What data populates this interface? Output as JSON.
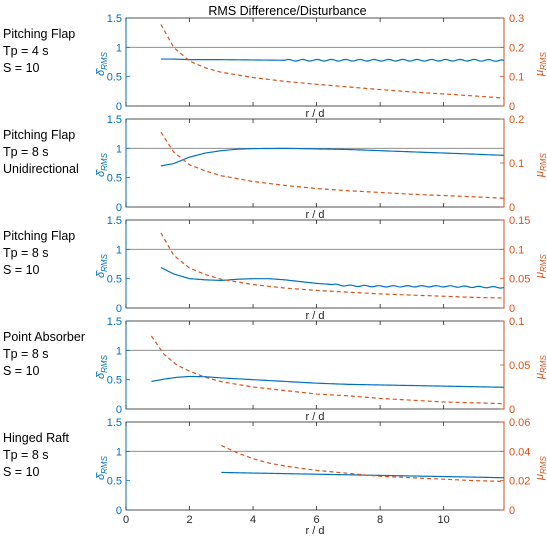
{
  "chart_data": {
    "type": "line",
    "title": "RMS Difference/Disturbance",
    "xlabel": "r / d",
    "x_ticks": [
      0,
      2,
      4,
      6,
      8,
      10
    ],
    "xlim": [
      0,
      11.9
    ],
    "colors": {
      "delta": "#0072BD",
      "mu": "#D95319",
      "refline": "#7f7f7f"
    },
    "left_ylabel": "δ̂_RMS",
    "right_ylabel": "μ_RMS",
    "panels": [
      {
        "label_lines": [
          "Pitching Flap",
          "Tp = 4 s",
          "S = 10"
        ],
        "ylim_left": [
          0,
          1.5
        ],
        "yticks_left": [
          "0",
          "0.5",
          "1",
          "1.5"
        ],
        "ylim_right": [
          0,
          0.3
        ],
        "yticks_right": [
          "0",
          "0.1",
          "0.2",
          "0.3"
        ],
        "series": [
          {
            "name": "δ̂_RMS",
            "axis": "left",
            "style": "solid",
            "x": [
              1.1,
              1.5,
              2,
              3,
              4,
              5,
              6,
              7,
              8,
              9,
              10,
              11,
              11.9
            ],
            "y": [
              0.8,
              0.8,
              0.79,
              0.79,
              0.785,
              0.78,
              0.78,
              0.78,
              0.78,
              0.78,
              0.78,
              0.78,
              0.775
            ],
            "wave_amp": 0.015,
            "wave_period": 0.45,
            "wave_start": 5
          },
          {
            "name": "μ_RMS",
            "axis": "right",
            "style": "dashed",
            "x": [
              1.1,
              1.5,
              2,
              2.5,
              3,
              4,
              5,
              6,
              7,
              8,
              9,
              10,
              11,
              11.9
            ],
            "y": [
              0.278,
              0.2,
              0.153,
              0.13,
              0.115,
              0.097,
              0.084,
              0.074,
              0.065,
              0.056,
              0.048,
              0.041,
              0.034,
              0.027
            ]
          }
        ]
      },
      {
        "label_lines": [
          "Pitching Flap",
          "Tp = 8 s",
          "Unidirectional"
        ],
        "ylim_left": [
          0,
          1.5
        ],
        "yticks_left": [
          "0",
          "0.5",
          "1",
          "1.5"
        ],
        "ylim_right": [
          0,
          0.2
        ],
        "yticks_right": [
          "0",
          "0.1",
          "0.2"
        ],
        "series": [
          {
            "name": "δ̂_RMS",
            "axis": "left",
            "style": "solid",
            "x": [
              1.1,
              1.5,
              2,
              2.5,
              3,
              3.5,
              4,
              5,
              6,
              7,
              8,
              9,
              10,
              11,
              11.9
            ],
            "y": [
              0.7,
              0.74,
              0.85,
              0.92,
              0.96,
              0.985,
              0.995,
              1.0,
              0.99,
              0.98,
              0.96,
              0.94,
              0.92,
              0.9,
              0.88
            ]
          },
          {
            "name": "μ_RMS",
            "axis": "right",
            "style": "dashed",
            "x": [
              1.1,
              1.5,
              2,
              2.5,
              3,
              4,
              5,
              6,
              7,
              8,
              9,
              10,
              11,
              11.9
            ],
            "y": [
              0.17,
              0.125,
              0.096,
              0.082,
              0.071,
              0.058,
              0.049,
              0.042,
              0.037,
              0.033,
              0.029,
              0.026,
              0.023,
              0.02
            ]
          }
        ]
      },
      {
        "label_lines": [
          "Pitching Flap",
          "Tp = 8 s",
          "S = 10"
        ],
        "ylim_left": [
          0,
          1.5
        ],
        "yticks_left": [
          "0",
          "0.5",
          "1",
          "1.5"
        ],
        "ylim_right": [
          0,
          0.15
        ],
        "yticks_right": [
          "0",
          "0.05",
          "0.1",
          "0.15"
        ],
        "series": [
          {
            "name": "δ̂_RMS",
            "axis": "left",
            "style": "solid",
            "x": [
              1.1,
              1.5,
              2,
              2.5,
              3,
              3.5,
              4,
              4.5,
              5,
              6,
              7,
              8,
              9,
              10,
              11,
              11.9
            ],
            "y": [
              0.69,
              0.58,
              0.5,
              0.48,
              0.47,
              0.49,
              0.5,
              0.5,
              0.48,
              0.42,
              0.38,
              0.37,
              0.37,
              0.37,
              0.36,
              0.35
            ],
            "wave_amp": 0.012,
            "wave_period": 0.45,
            "wave_start": 6.5
          },
          {
            "name": "μ_RMS",
            "axis": "right",
            "style": "dashed",
            "x": [
              1.1,
              1.5,
              2,
              2.5,
              3,
              4,
              5,
              6,
              7,
              8,
              9,
              10,
              11,
              11.9
            ],
            "y": [
              0.128,
              0.09,
              0.068,
              0.057,
              0.049,
              0.04,
              0.034,
              0.03,
              0.027,
              0.024,
              0.022,
              0.02,
              0.018,
              0.017
            ]
          }
        ]
      },
      {
        "label_lines": [
          "Point Absorber",
          "Tp = 8 s",
          "S = 10"
        ],
        "ylim_left": [
          0,
          1.5
        ],
        "yticks_left": [
          "0",
          "0.5",
          "1",
          "1.5"
        ],
        "ylim_right": [
          0,
          0.1
        ],
        "yticks_right": [
          "0",
          "0.05",
          "0.1"
        ],
        "series": [
          {
            "name": "δ̂_RMS",
            "axis": "left",
            "style": "solid",
            "x": [
              0.8,
              1.2,
              1.6,
              2,
              2.5,
              3,
              4,
              5,
              6,
              7,
              8,
              9,
              10,
              11,
              11.9
            ],
            "y": [
              0.47,
              0.51,
              0.54,
              0.555,
              0.55,
              0.53,
              0.5,
              0.47,
              0.44,
              0.42,
              0.41,
              0.4,
              0.39,
              0.38,
              0.37
            ]
          },
          {
            "name": "μ_RMS",
            "axis": "right",
            "style": "dashed",
            "x": [
              0.8,
              1.2,
              1.6,
              2,
              2.5,
              3,
              4,
              5,
              6,
              7,
              8,
              9,
              10,
              11,
              11.9
            ],
            "y": [
              0.083,
              0.062,
              0.05,
              0.043,
              0.036,
              0.031,
              0.025,
              0.021,
              0.017,
              0.015,
              0.012,
              0.01,
              0.008,
              0.007,
              0.006
            ]
          }
        ]
      },
      {
        "label_lines": [
          "Hinged Raft",
          "Tp = 8 s",
          "S = 10"
        ],
        "ylim_left": [
          0,
          1.5
        ],
        "yticks_left": [
          "0",
          "0.5",
          "1",
          "1.5"
        ],
        "ylim_right": [
          0,
          0.06
        ],
        "yticks_right": [
          "0",
          "0.02",
          "0.04",
          "0.06"
        ],
        "series": [
          {
            "name": "δ̂_RMS",
            "axis": "left",
            "style": "solid",
            "x": [
              3,
              4,
              5,
              6,
              7,
              8,
              9,
              10,
              11,
              11.9
            ],
            "y": [
              0.64,
              0.63,
              0.62,
              0.61,
              0.6,
              0.59,
              0.58,
              0.57,
              0.56,
              0.55
            ]
          },
          {
            "name": "μ_RMS",
            "axis": "right",
            "style": "dashed",
            "x": [
              3,
              3.5,
              4,
              4.5,
              5,
              6,
              7,
              8,
              9,
              10,
              11,
              11.9
            ],
            "y": [
              0.044,
              0.039,
              0.035,
              0.032,
              0.03,
              0.027,
              0.025,
              0.023,
              0.022,
              0.021,
              0.02,
              0.0195
            ]
          }
        ]
      }
    ]
  }
}
